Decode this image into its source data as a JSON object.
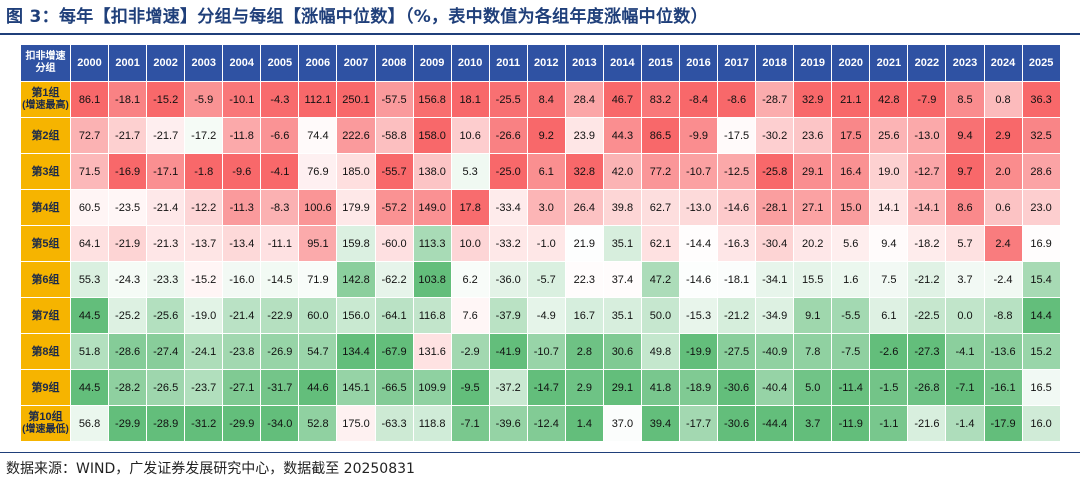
{
  "title": "图 3：每年【扣非增速】分组与每组【涨幅中位数】（%，表中数值为各组年度涨幅中位数）",
  "source": "数据来源：WIND，广发证券发展研究中心，数据截至 20250831",
  "colors": {
    "header_bg": "#2f52a3",
    "row_label_bg": "#f6b400",
    "high": "#f8686a",
    "mid": "#ffffff",
    "low": "#63be7b"
  },
  "chart_data": {
    "type": "heatmap",
    "corner_label": [
      "扣非增速",
      "分组"
    ],
    "columns": [
      "2000",
      "2001",
      "2002",
      "2003",
      "2004",
      "2005",
      "2006",
      "2007",
      "2008",
      "2009",
      "2010",
      "2011",
      "2012",
      "2013",
      "2014",
      "2015",
      "2016",
      "2017",
      "2018",
      "2019",
      "2020",
      "2021",
      "2022",
      "2023",
      "2024",
      "2025"
    ],
    "rows": [
      {
        "label": [
          "第1组",
          "(增速最高)"
        ],
        "values": [
          86.1,
          -18.1,
          -15.2,
          -5.9,
          -10.1,
          -4.3,
          112.1,
          250.1,
          -57.5,
          156.8,
          18.1,
          -25.5,
          8.4,
          28.4,
          46.7,
          83.2,
          -8.4,
          -8.6,
          -28.7,
          32.9,
          21.1,
          42.8,
          -7.9,
          8.5,
          0.8,
          36.3
        ]
      },
      {
        "label": [
          "第2组"
        ],
        "values": [
          72.7,
          -21.7,
          -21.7,
          -17.2,
          -11.8,
          -6.6,
          74.4,
          222.6,
          -58.8,
          158.0,
          10.6,
          -26.6,
          9.2,
          23.9,
          44.3,
          86.5,
          -9.9,
          -17.5,
          -30.2,
          23.6,
          17.5,
          25.6,
          -13.0,
          9.4,
          2.9,
          32.5
        ]
      },
      {
        "label": [
          "第3组"
        ],
        "values": [
          71.5,
          -16.9,
          -17.1,
          -1.8,
          -9.6,
          -4.1,
          76.9,
          185.0,
          -55.7,
          138.0,
          5.3,
          -25.0,
          6.1,
          32.8,
          42.0,
          77.2,
          -10.7,
          -12.5,
          -25.8,
          29.1,
          16.4,
          19.0,
          -12.7,
          9.7,
          2.0,
          28.6
        ]
      },
      {
        "label": [
          "第4组"
        ],
        "values": [
          60.5,
          -23.5,
          -21.4,
          -12.2,
          -11.3,
          -8.3,
          100.6,
          179.9,
          -57.2,
          149.0,
          17.8,
          -33.4,
          3.0,
          26.4,
          39.8,
          62.7,
          -13.0,
          -14.6,
          -28.1,
          27.1,
          15.0,
          14.1,
          -14.1,
          8.6,
          0.6,
          23.0
        ]
      },
      {
        "label": [
          "第5组"
        ],
        "values": [
          64.1,
          -21.9,
          -21.3,
          -13.7,
          -13.4,
          -11.1,
          95.1,
          159.8,
          -60.0,
          113.3,
          10.0,
          -33.2,
          -1.0,
          21.9,
          35.1,
          62.1,
          -14.4,
          -16.3,
          -30.4,
          20.2,
          5.6,
          9.4,
          -18.2,
          5.7,
          2.4,
          16.9
        ]
      },
      {
        "label": [
          "第6组"
        ],
        "values": [
          55.3,
          -24.3,
          -23.3,
          -15.2,
          -16.0,
          -14.5,
          71.9,
          142.8,
          -62.2,
          103.8,
          6.2,
          -36.0,
          -5.7,
          22.3,
          37.4,
          47.2,
          -14.6,
          -18.1,
          -34.1,
          15.5,
          1.6,
          7.5,
          -21.2,
          3.7,
          -2.4,
          15.4
        ]
      },
      {
        "label": [
          "第7组"
        ],
        "values": [
          44.5,
          -25.2,
          -25.6,
          -19.0,
          -21.4,
          -22.9,
          60.0,
          156.0,
          -64.1,
          116.8,
          7.6,
          -37.9,
          -4.9,
          16.7,
          35.1,
          50.0,
          -15.3,
          -21.2,
          -34.9,
          9.1,
          -5.5,
          6.1,
          -22.5,
          0.0,
          -8.8,
          14.4
        ]
      },
      {
        "label": [
          "第8组"
        ],
        "values": [
          51.8,
          -28.6,
          -27.4,
          -24.1,
          -23.8,
          -26.9,
          54.7,
          134.4,
          -67.9,
          131.6,
          -2.9,
          -41.9,
          -10.7,
          2.8,
          30.6,
          49.8,
          -19.9,
          -27.5,
          -40.9,
          7.8,
          -7.5,
          -2.6,
          -27.3,
          -4.1,
          -13.6,
          15.2
        ]
      },
      {
        "label": [
          "第9组"
        ],
        "values": [
          44.5,
          -28.2,
          -26.5,
          -23.7,
          -27.1,
          -31.7,
          44.6,
          145.1,
          -66.5,
          109.9,
          -9.5,
          -37.2,
          -14.7,
          2.9,
          29.1,
          41.8,
          -18.9,
          -30.6,
          -40.4,
          5.0,
          -11.4,
          -1.5,
          -26.8,
          -7.1,
          -16.1,
          16.5
        ]
      },
      {
        "label": [
          "第10组",
          "(增速最低)"
        ],
        "values": [
          56.8,
          -29.9,
          -28.9,
          -31.2,
          -29.9,
          -34.0,
          52.8,
          175.0,
          -63.3,
          118.8,
          -7.1,
          -39.6,
          -12.4,
          1.4,
          37.0,
          39.4,
          -17.7,
          -30.6,
          -44.4,
          3.7,
          -11.9,
          -1.1,
          -21.6,
          -1.4,
          -17.9,
          16.0
        ]
      }
    ]
  }
}
